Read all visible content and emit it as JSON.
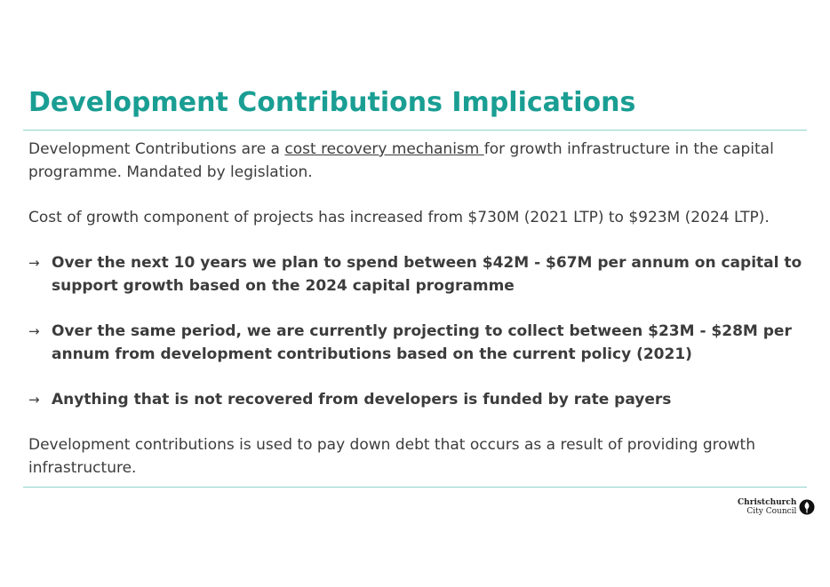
{
  "slide": {
    "title": "Development Contributions Implications"
  },
  "body": {
    "intro_prefix": "Development Contributions are a ",
    "intro_link": "cost recovery mechanism ",
    "intro_suffix": "for growth infrastructure in the capital programme. Mandated by legislation.",
    "cost_line": "Cost of growth component of projects has increased from $730M (2021 LTP) to $923M (2024 LTP).",
    "bullets": [
      "Over the next 10 years we plan to spend between $42M - $67M per annum on capital to support growth based on the 2024 capital programme",
      "Over the same period, we are currently projecting to collect between $23M - $28M per annum from development contributions based on the current policy (2021)",
      "Anything that is not recovered from developers is funded by rate payers"
    ],
    "closing": "Development contributions is used to pay down debt that occurs as a result of providing growth infrastructure."
  },
  "logo": {
    "line1": "Christchurch",
    "line2": "City Council",
    "icon": "leaf-icon"
  },
  "colors": {
    "title": "#1a9e93",
    "rule": "#8fd3cc",
    "text": "#3c3c3c"
  }
}
